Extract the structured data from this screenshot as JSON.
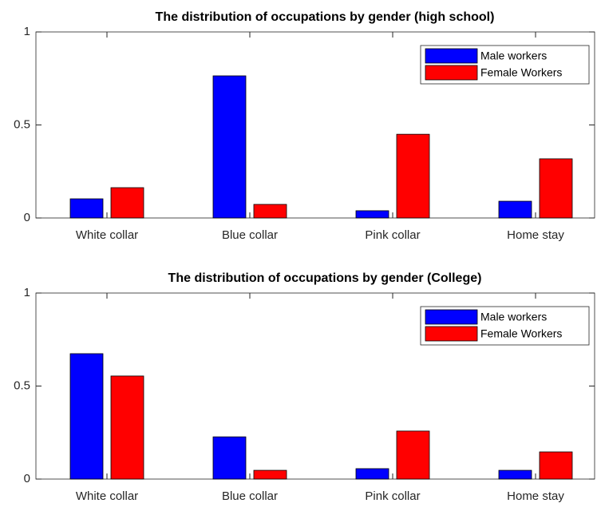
{
  "chart_data": [
    {
      "type": "bar",
      "title": "The distribution of occupations by gender (high school)",
      "categories": [
        "White collar",
        "Blue collar",
        "Pink collar",
        "Home stay"
      ],
      "series": [
        {
          "name": "Male workers",
          "color": "#0000ff",
          "values": [
            0.103,
            0.764,
            0.039,
            0.09
          ]
        },
        {
          "name": "Female Workers",
          "color": "#ff0000",
          "values": [
            0.163,
            0.073,
            0.45,
            0.318
          ]
        }
      ],
      "ylim": [
        0,
        1
      ],
      "yticks": [
        0,
        0.5,
        1
      ],
      "legend": "northeast"
    },
    {
      "type": "bar",
      "title": "The distribution of occupations by gender (College)",
      "categories": [
        "White collar",
        "Blue collar",
        "Pink collar",
        "Home stay"
      ],
      "series": [
        {
          "name": "Male workers",
          "color": "#0000ff",
          "values": [
            0.674,
            0.227,
            0.056,
            0.047
          ]
        },
        {
          "name": "Female Workers",
          "color": "#ff0000",
          "values": [
            0.554,
            0.047,
            0.258,
            0.146
          ]
        }
      ],
      "ylim": [
        0,
        1
      ],
      "yticks": [
        0,
        0.5,
        1
      ],
      "legend": "northeast"
    }
  ]
}
